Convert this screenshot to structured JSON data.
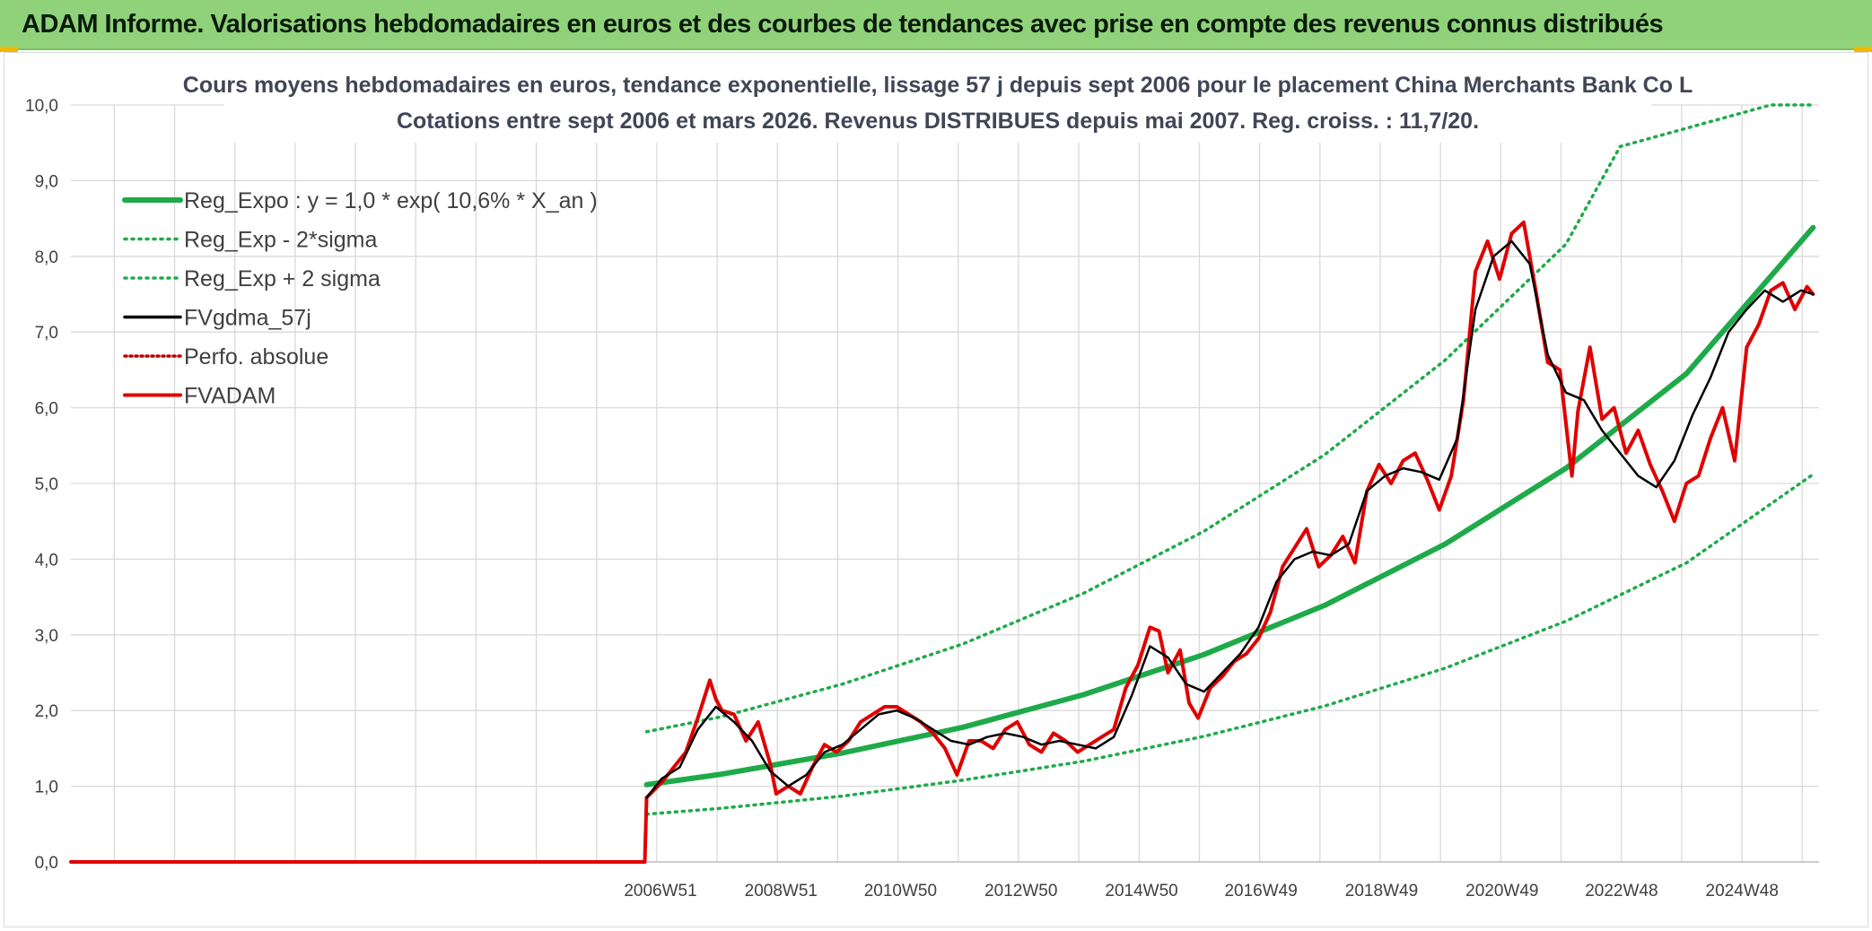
{
  "header": {
    "title": "ADAM Informe. Valorisations hebdomadaires en euros et des courbes de tendances avec prise en compte des revenus connus distribués"
  },
  "colors": {
    "header_bg": "#8fd27a",
    "reg_expo": "#1faa4a",
    "sigma": "#1faa4a",
    "fvgdma": "#000000",
    "perfo": "#c00000",
    "fvadam": "#e00000",
    "grid": "#d9d9d9"
  },
  "chart_data": {
    "type": "line",
    "title_lines": [
      "Cours moyens hebdomadaires en euros, tendance exponentielle, lissage 57 j depuis sept 2006 pour le placement China Merchants Bank Co L",
      "Cotations entre sept 2006 et mars 2026. Revenus DISTRIBUES depuis mai 2007. Reg. croiss. : 11,7/20."
    ],
    "xlabel": "",
    "ylabel": "",
    "ylim": [
      0,
      10
    ],
    "y_ticks": [
      "0,0",
      "1,0",
      "2,0",
      "3,0",
      "4,0",
      "5,0",
      "6,0",
      "7,0",
      "8,0",
      "9,0",
      "10,0"
    ],
    "x_ticks": [
      "2006W51",
      "2008W51",
      "2010W50",
      "2012W50",
      "2014W50",
      "2016W49",
      "2018W49",
      "2020W49",
      "2022W48",
      "2024W48"
    ],
    "x_range": [
      1997.2,
      2026.2
    ],
    "data_start_year": 2006.75,
    "grid": true,
    "legend_position": "top-left",
    "legend": [
      {
        "key": "reg_expo",
        "label": "Reg_Expo : y = 1,0 * exp( 10,6% *  X_an )",
        "style": "thick-solid"
      },
      {
        "key": "sigma_minus",
        "label": "Reg_Exp - 2*sigma",
        "style": "dotted"
      },
      {
        "key": "sigma_plus",
        "label": "Reg_Exp + 2 sigma",
        "style": "dotted"
      },
      {
        "key": "fvgdma",
        "label": "FVgdma_57j",
        "style": "solid"
      },
      {
        "key": "perfo",
        "label": "Perfo. absolue",
        "style": "dotted-thin"
      },
      {
        "key": "fvadam",
        "label": "FVADAM",
        "style": "thick-solid"
      }
    ],
    "series": [
      {
        "name": "Reg_Expo : y = 1,0 * exp( 10,6% *  X_an )",
        "key": "reg_expo",
        "x": [
          2006.75,
          2008,
          2010,
          2012,
          2014,
          2016,
          2018,
          2020,
          2022,
          2024,
          2026.1
        ],
        "y": [
          1.02,
          1.16,
          1.44,
          1.78,
          2.21,
          2.74,
          3.39,
          4.2,
          5.2,
          6.45,
          8.38
        ]
      },
      {
        "name": "Reg_Exp - 2*sigma",
        "key": "sigma_minus",
        "x": [
          2006.75,
          2008,
          2010,
          2012,
          2014,
          2016,
          2018,
          2020,
          2022,
          2024,
          2026.1
        ],
        "y": [
          0.63,
          0.71,
          0.87,
          1.08,
          1.33,
          1.66,
          2.06,
          2.56,
          3.18,
          3.95,
          5.12
        ]
      },
      {
        "name": "Reg_Exp + 2 sigma",
        "key": "sigma_plus",
        "x": [
          2006.75,
          2008,
          2010,
          2012,
          2014,
          2016,
          2018,
          2020,
          2022,
          2022.9,
          2025.4,
          2026.1
        ],
        "y": [
          1.72,
          1.92,
          2.35,
          2.88,
          3.55,
          4.37,
          5.38,
          6.63,
          8.16,
          9.45,
          10.0,
          10.0
        ]
      },
      {
        "name": "FVgdma_57j",
        "key": "fvgdma",
        "x": [
          2006.75,
          2007.0,
          2007.3,
          2007.6,
          2007.9,
          2008.2,
          2008.5,
          2008.8,
          2009.1,
          2009.4,
          2009.7,
          2010.0,
          2010.3,
          2010.6,
          2010.9,
          2011.2,
          2011.5,
          2011.8,
          2012.1,
          2012.4,
          2012.7,
          2013.0,
          2013.3,
          2013.6,
          2013.9,
          2014.2,
          2014.5,
          2014.8,
          2015.1,
          2015.4,
          2015.7,
          2016.0,
          2016.3,
          2016.6,
          2016.9,
          2017.2,
          2017.5,
          2017.8,
          2018.1,
          2018.4,
          2018.7,
          2019.0,
          2019.3,
          2019.6,
          2019.9,
          2020.2,
          2020.5,
          2020.8,
          2021.1,
          2021.4,
          2021.7,
          2022.0,
          2022.3,
          2022.6,
          2022.9,
          2023.2,
          2023.5,
          2023.8,
          2024.1,
          2024.4,
          2024.7,
          2025.0,
          2025.3,
          2025.6,
          2025.9,
          2026.1
        ],
        "y": [
          0.85,
          1.1,
          1.25,
          1.75,
          2.05,
          1.85,
          1.6,
          1.2,
          1.0,
          1.15,
          1.45,
          1.55,
          1.75,
          1.95,
          2.0,
          1.9,
          1.75,
          1.6,
          1.55,
          1.65,
          1.7,
          1.65,
          1.55,
          1.6,
          1.55,
          1.5,
          1.65,
          2.2,
          2.85,
          2.7,
          2.35,
          2.25,
          2.5,
          2.75,
          3.1,
          3.7,
          4.0,
          4.1,
          4.05,
          4.2,
          4.9,
          5.1,
          5.2,
          5.15,
          5.05,
          5.6,
          7.3,
          8.0,
          8.2,
          7.9,
          6.7,
          6.2,
          6.1,
          5.7,
          5.4,
          5.1,
          4.95,
          5.3,
          5.9,
          6.4,
          7.0,
          7.3,
          7.55,
          7.4,
          7.55,
          7.5
        ]
      },
      {
        "name": "Perfo. absolue",
        "key": "perfo",
        "x": [
          1997.2,
          2006.75
        ],
        "y": [
          0.0,
          0.0
        ]
      },
      {
        "name": "FVADAM",
        "key": "fvadam",
        "x": [
          1997.2,
          2006.72,
          2006.75,
          2007.0,
          2007.2,
          2007.4,
          2007.6,
          2007.8,
          2007.9,
          2008.0,
          2008.2,
          2008.4,
          2008.6,
          2008.8,
          2008.9,
          2009.1,
          2009.3,
          2009.5,
          2009.7,
          2009.9,
          2010.1,
          2010.3,
          2010.5,
          2010.7,
          2010.9,
          2011.1,
          2011.3,
          2011.5,
          2011.7,
          2011.9,
          2012.1,
          2012.3,
          2012.5,
          2012.7,
          2012.9,
          2013.1,
          2013.3,
          2013.5,
          2013.7,
          2013.9,
          2014.1,
          2014.3,
          2014.5,
          2014.7,
          2014.9,
          2015.1,
          2015.25,
          2015.4,
          2015.6,
          2015.75,
          2015.9,
          2016.1,
          2016.3,
          2016.5,
          2016.7,
          2016.9,
          2017.1,
          2017.3,
          2017.5,
          2017.7,
          2017.9,
          2018.1,
          2018.3,
          2018.5,
          2018.7,
          2018.9,
          2019.1,
          2019.3,
          2019.5,
          2019.7,
          2019.9,
          2020.1,
          2020.3,
          2020.5,
          2020.7,
          2020.9,
          2021.1,
          2021.3,
          2021.5,
          2021.7,
          2021.9,
          2022.1,
          2022.2,
          2022.4,
          2022.6,
          2022.8,
          2023.0,
          2023.2,
          2023.4,
          2023.6,
          2023.8,
          2024.0,
          2024.2,
          2024.4,
          2024.6,
          2024.8,
          2025.0,
          2025.2,
          2025.4,
          2025.6,
          2025.8,
          2026.0,
          2026.1
        ],
        "y": [
          0.0,
          0.0,
          0.85,
          1.05,
          1.25,
          1.45,
          1.9,
          2.4,
          2.15,
          2.0,
          1.95,
          1.6,
          1.85,
          1.3,
          0.9,
          1.0,
          0.9,
          1.25,
          1.55,
          1.45,
          1.6,
          1.85,
          1.95,
          2.05,
          2.05,
          1.95,
          1.85,
          1.7,
          1.5,
          1.15,
          1.6,
          1.6,
          1.5,
          1.75,
          1.85,
          1.55,
          1.45,
          1.7,
          1.6,
          1.45,
          1.55,
          1.65,
          1.75,
          2.3,
          2.6,
          3.1,
          3.05,
          2.5,
          2.8,
          2.1,
          1.9,
          2.3,
          2.45,
          2.65,
          2.75,
          2.95,
          3.3,
          3.9,
          4.15,
          4.4,
          3.9,
          4.05,
          4.3,
          3.95,
          4.9,
          5.25,
          5.0,
          5.3,
          5.4,
          5.05,
          4.65,
          5.1,
          6.1,
          7.8,
          8.2,
          7.7,
          8.3,
          8.45,
          7.55,
          6.6,
          6.5,
          5.1,
          5.95,
          6.8,
          5.85,
          6.0,
          5.4,
          5.7,
          5.25,
          4.9,
          4.5,
          5.0,
          5.1,
          5.6,
          6.0,
          5.3,
          6.8,
          7.1,
          7.55,
          7.65,
          7.3,
          7.6,
          7.5
        ]
      }
    ]
  }
}
